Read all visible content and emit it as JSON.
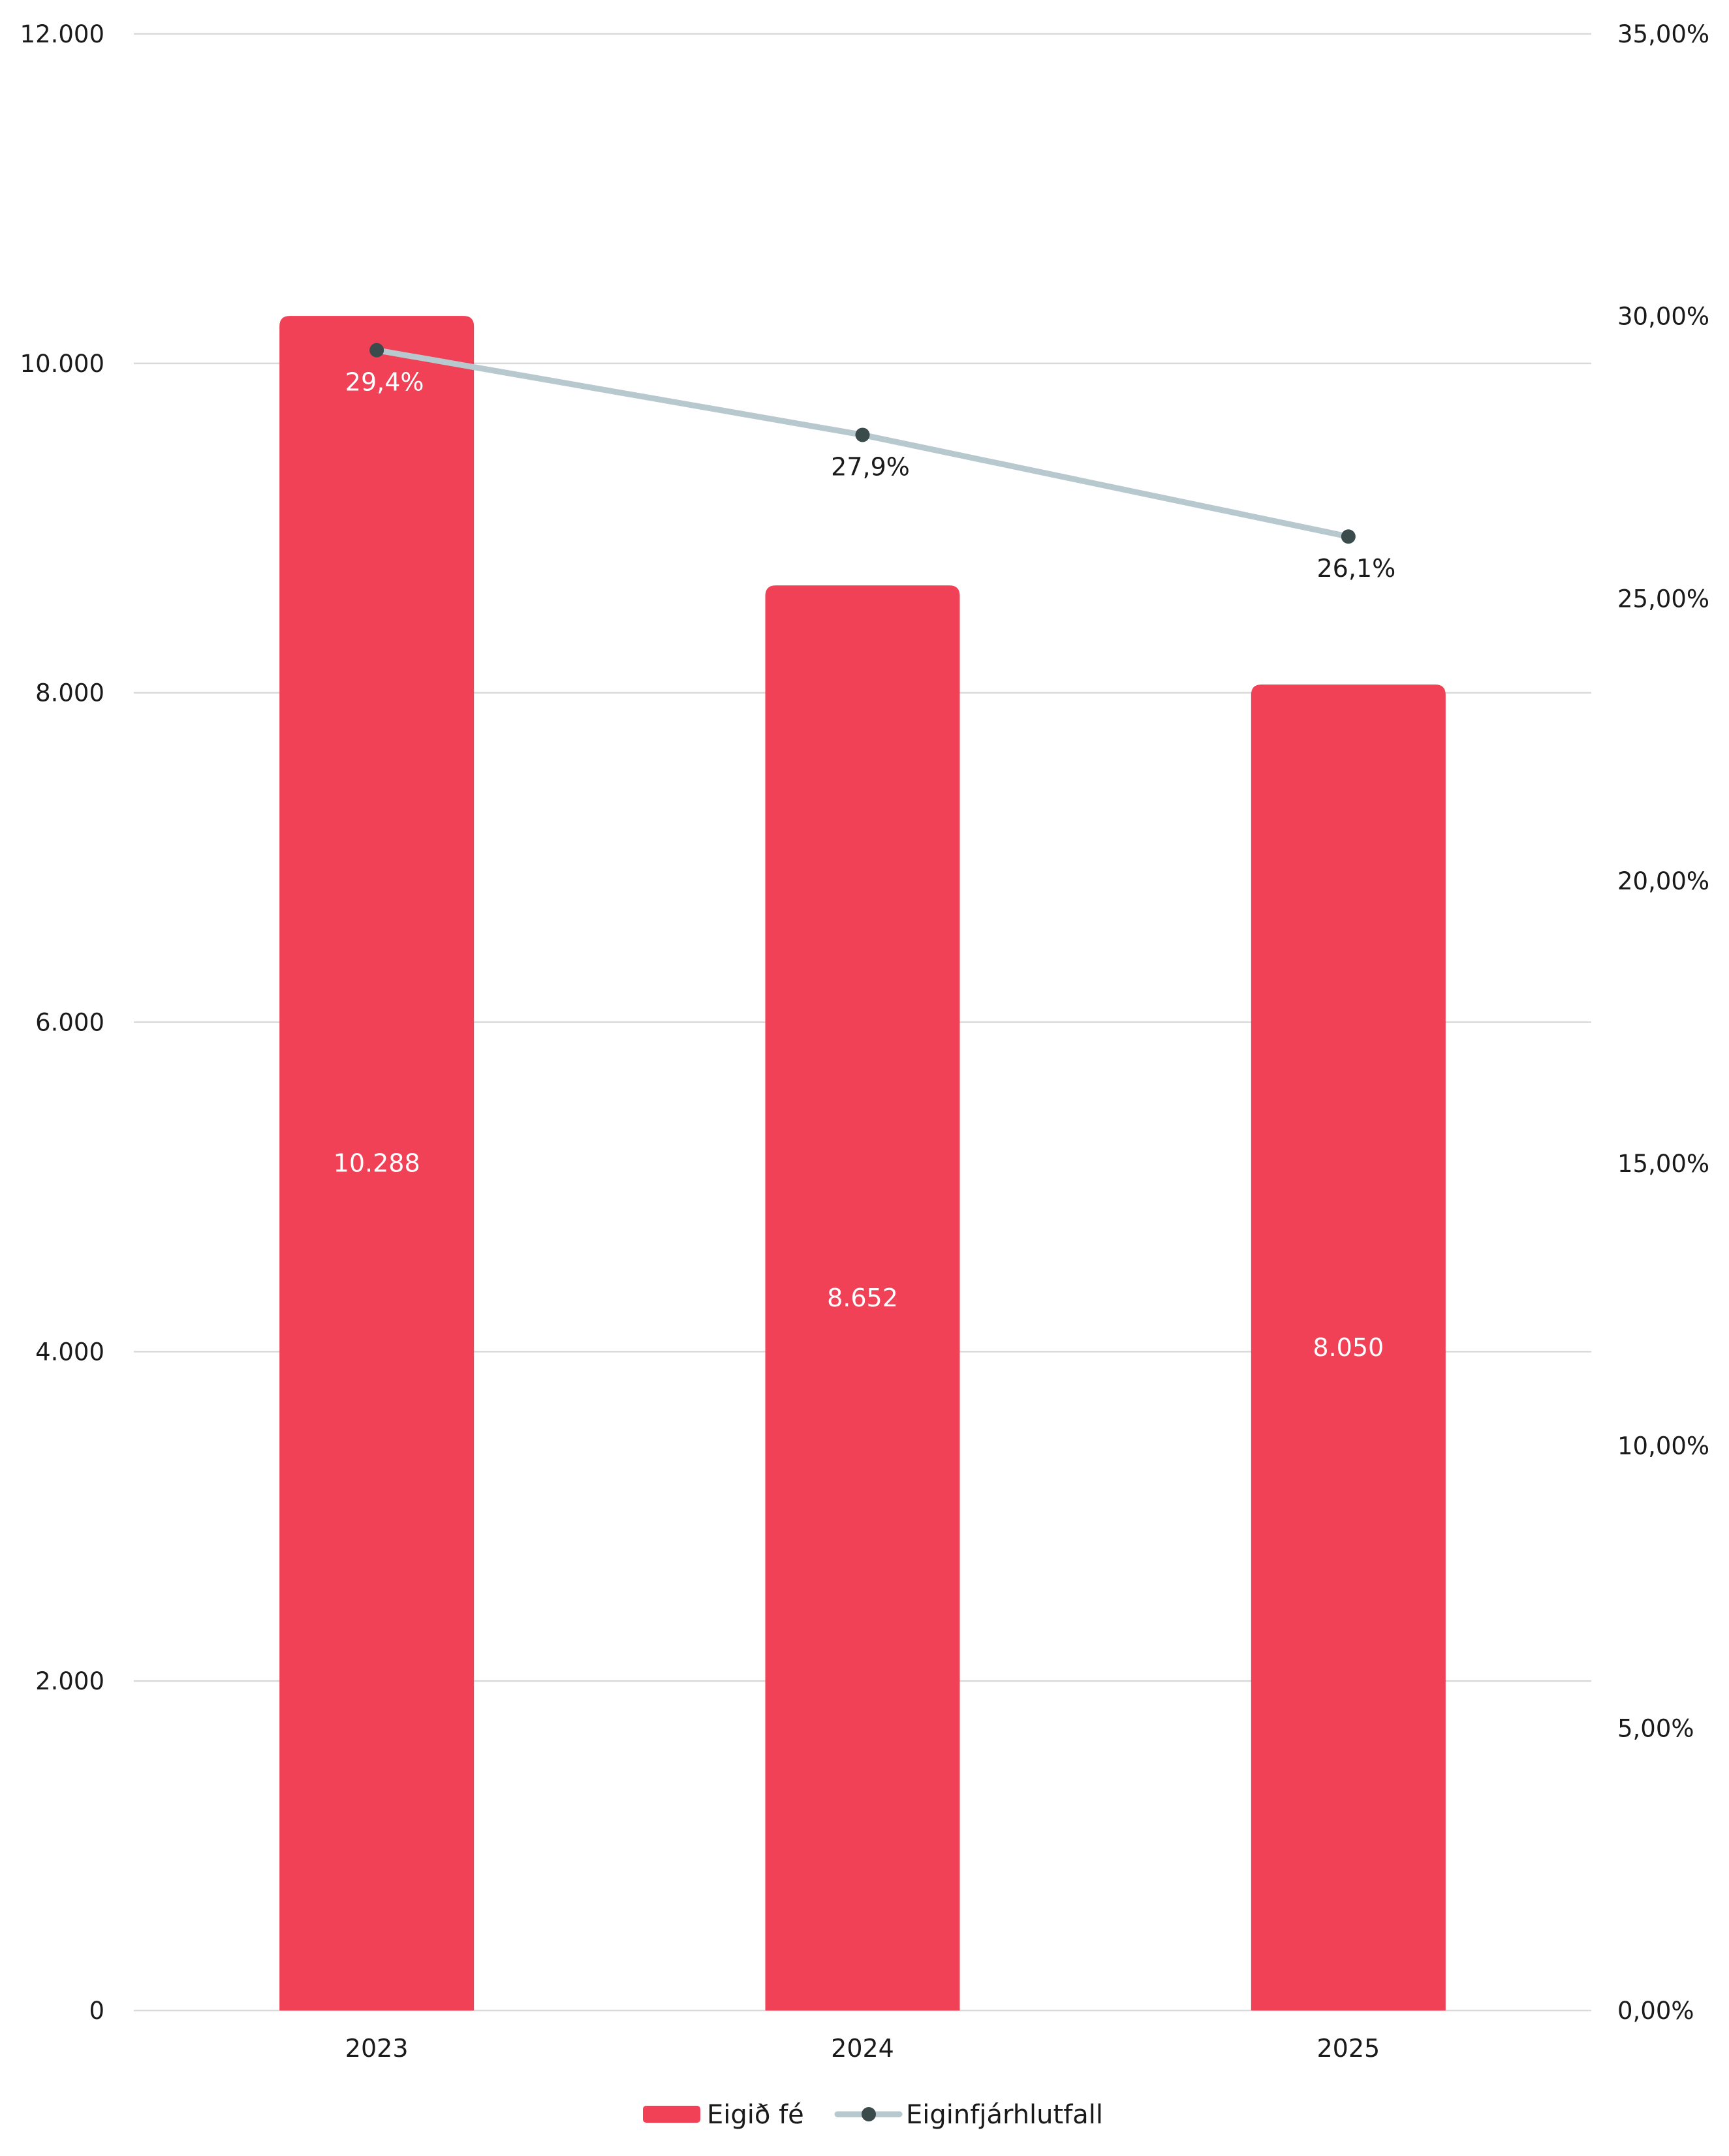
{
  "chart_data": {
    "type": "bar",
    "categories": [
      "2023",
      "2024",
      "2025"
    ],
    "series": [
      {
        "name": "Eigið fé",
        "type": "bar",
        "axis": "left",
        "color": "#f04156",
        "values": [
          10288,
          8652,
          8050
        ],
        "labels": [
          "10.288",
          "8.652",
          "8.050"
        ]
      },
      {
        "name": "Eiginfjárhlutfall",
        "type": "line",
        "axis": "right",
        "color": "#b7c9ce",
        "marker_color": "#3b4a4a",
        "values": [
          29.4,
          27.9,
          26.1
        ],
        "labels": [
          "29,4%",
          "27,9%",
          "26,1%"
        ]
      }
    ],
    "y_left": {
      "ylim": [
        0,
        12000
      ],
      "ticks": [
        0,
        2000,
        4000,
        6000,
        8000,
        10000,
        12000
      ],
      "tick_labels": [
        "0",
        "2.000",
        "4.000",
        "6.000",
        "8.000",
        "10.000",
        "12.000"
      ]
    },
    "y_right": {
      "ylim": [
        0,
        35
      ],
      "ticks": [
        0,
        5,
        10,
        15,
        20,
        25,
        30,
        35
      ],
      "tick_labels": [
        "0,00%",
        "5,00%",
        "10,00%",
        "15,00%",
        "20,00%",
        "25,00%",
        "30,00%",
        "35,00%"
      ]
    },
    "grid": true,
    "legend": "bottom-center",
    "title": "",
    "xlabel": "",
    "ylabel": ""
  }
}
